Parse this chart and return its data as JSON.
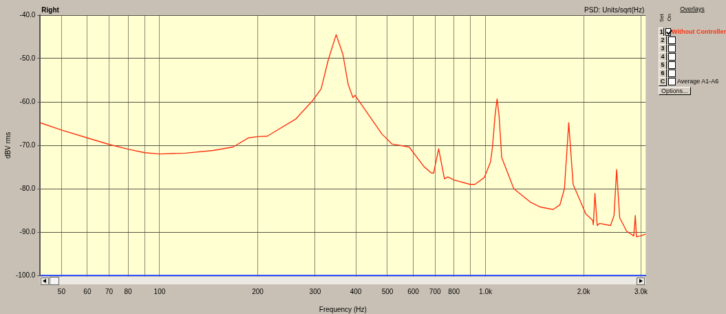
{
  "chart_data": {
    "type": "line",
    "xlabel": "Frequency (Hz)",
    "ylabel": "dBV rms",
    "log": "x",
    "grid": true,
    "legend": "right",
    "marker": "none",
    "line_style": "solid",
    "xlim": [
      43,
      3100
    ],
    "ylim": [
      -100,
      -40
    ],
    "xticks": [
      50,
      60,
      70,
      80,
      {
        "value": 90,
        "label": null
      },
      100,
      200,
      300,
      400,
      500,
      600,
      700,
      800,
      {
        "value": 900,
        "label": null
      },
      {
        "value": 1000,
        "label": "1.0k"
      },
      {
        "value": 2000,
        "label": "2.0k"
      },
      {
        "value": 3000,
        "label": "3.0k"
      }
    ],
    "yticks": [
      {
        "value": -100,
        "label": "-100.0"
      },
      {
        "value": -90,
        "label": "-90.0"
      },
      {
        "value": -80,
        "label": "-80.0"
      },
      {
        "value": -70,
        "label": "-70.0"
      },
      {
        "value": -60,
        "label": "-60.0"
      },
      {
        "value": -50,
        "label": "-50.0"
      },
      {
        "value": -40,
        "label": "-40.0"
      }
    ],
    "annotations": [
      "Right",
      "PSD: Units/sqrt(Hz)",
      "Overlays",
      "Set",
      "On",
      "1",
      "2",
      "3",
      "4",
      "5",
      "6",
      "C",
      "Average A1-A6",
      "Options..."
    ],
    "series": [
      {
        "name": "Without Controller",
        "color": "#ff3010",
        "x": [
          43,
          50,
          60,
          70,
          80,
          90,
          100,
          120,
          146,
          168,
          187,
          200,
          214,
          262,
          294,
          313,
          329,
          348,
          365,
          379,
          392,
          398,
          481,
          516,
          583,
          647,
          682,
          693,
          718,
          748,
          766,
          800,
          896,
          928,
          992,
          1036,
          1050,
          1070,
          1085,
          1100,
          1121,
          1221,
          1373,
          1468,
          1612,
          1692,
          1746,
          1800,
          1857,
          2030,
          2131,
          2142,
          2166,
          2201,
          2237,
          2418,
          2479,
          2525,
          2580,
          2710,
          2850,
          2881,
          2905,
          2987,
          3100
        ],
        "values": [
          -64.8,
          -66.5,
          -68.3,
          -69.8,
          -70.9,
          -71.7,
          -72.0,
          -71.8,
          -71.2,
          -70.4,
          -68.3,
          -68.0,
          -67.9,
          -63.9,
          -59.8,
          -57.0,
          -50.4,
          -44.5,
          -49.0,
          -56.0,
          -59.0,
          -58.5,
          -67.4,
          -69.7,
          -70.4,
          -74.9,
          -76.4,
          -76.4,
          -70.8,
          -77.7,
          -77.3,
          -78.0,
          -79.0,
          -79.0,
          -77.4,
          -73.8,
          -70.5,
          -63.0,
          -59.3,
          -63.0,
          -72.8,
          -80.0,
          -83.1,
          -84.2,
          -84.8,
          -83.7,
          -80.0,
          -64.8,
          -79.0,
          -85.8,
          -87.3,
          -88.3,
          -81.1,
          -88.5,
          -88.0,
          -88.5,
          -86.2,
          -75.6,
          -86.7,
          -89.8,
          -90.9,
          -86.2,
          -91.1,
          -90.9,
          -90.5
        ]
      }
    ]
  }
}
